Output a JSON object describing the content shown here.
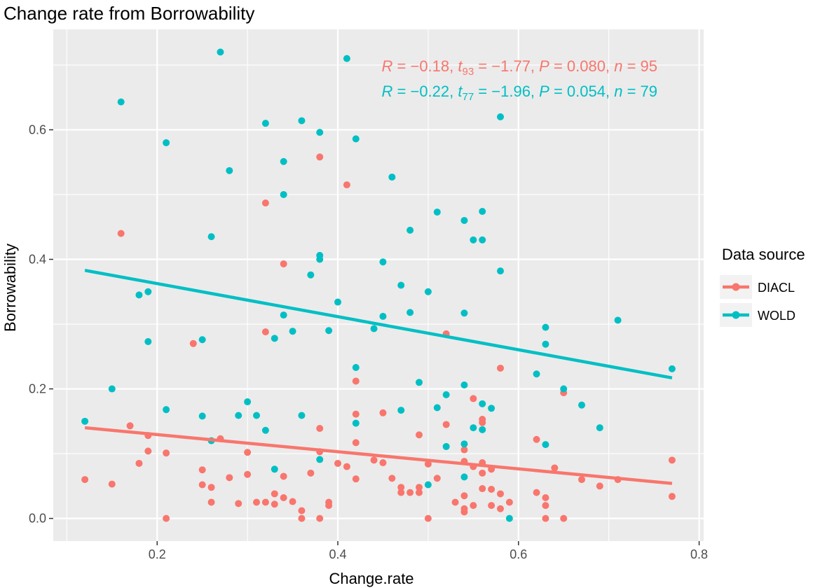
{
  "chart_data": {
    "type": "scatter",
    "title": "Change rate from Borrowability",
    "xlabel": "Change.rate",
    "ylabel": "Borrowability",
    "xlim": [
      0.085,
      0.805
    ],
    "ylim": [
      -0.035,
      0.755
    ],
    "x_ticks": [
      0.2,
      0.4,
      0.6,
      0.8
    ],
    "x_tick_labels": [
      "0.2",
      "0.4",
      "0.6",
      "0.8"
    ],
    "y_ticks": [
      0.0,
      0.2,
      0.4,
      0.6
    ],
    "y_tick_labels": [
      "0.0",
      "0.2",
      "0.4",
      "0.6"
    ],
    "legend": {
      "title": "Data source",
      "position": "right"
    },
    "series": [
      {
        "name": "DIACL",
        "color": "#F8766D",
        "fit": {
          "x0": 0.12,
          "y0": 0.14,
          "x1": 0.77,
          "y1": 0.054
        },
        "stat": {
          "R": "−0.18",
          "df": "93",
          "t": "−1.77",
          "P": "0.080",
          "n": "95"
        },
        "points": [
          [
            0.12,
            0.06
          ],
          [
            0.15,
            0.053
          ],
          [
            0.16,
            0.44
          ],
          [
            0.17,
            0.143
          ],
          [
            0.18,
            0.085
          ],
          [
            0.19,
            0.128
          ],
          [
            0.19,
            0.104
          ],
          [
            0.21,
            0.101
          ],
          [
            0.21,
            0.0
          ],
          [
            0.24,
            0.27
          ],
          [
            0.25,
            0.075
          ],
          [
            0.25,
            0.052
          ],
          [
            0.26,
            0.025
          ],
          [
            0.26,
            0.048
          ],
          [
            0.27,
            0.123
          ],
          [
            0.28,
            0.063
          ],
          [
            0.29,
            0.023
          ],
          [
            0.3,
            0.102
          ],
          [
            0.3,
            0.068
          ],
          [
            0.31,
            0.025
          ],
          [
            0.32,
            0.487
          ],
          [
            0.32,
            0.288
          ],
          [
            0.32,
            0.025
          ],
          [
            0.33,
            0.038
          ],
          [
            0.33,
            0.022
          ],
          [
            0.34,
            0.393
          ],
          [
            0.34,
            0.032
          ],
          [
            0.34,
            0.065
          ],
          [
            0.35,
            0.026
          ],
          [
            0.36,
            0.012
          ],
          [
            0.36,
            0.0
          ],
          [
            0.37,
            0.07
          ],
          [
            0.38,
            0.558
          ],
          [
            0.38,
            0.139
          ],
          [
            0.38,
            0.103
          ],
          [
            0.38,
            0.0
          ],
          [
            0.39,
            0.025
          ],
          [
            0.39,
            0.02
          ],
          [
            0.4,
            0.085
          ],
          [
            0.41,
            0.515
          ],
          [
            0.41,
            0.08
          ],
          [
            0.42,
            0.212
          ],
          [
            0.42,
            0.161
          ],
          [
            0.42,
            0.117
          ],
          [
            0.42,
            0.061
          ],
          [
            0.44,
            0.09
          ],
          [
            0.45,
            0.163
          ],
          [
            0.45,
            0.086
          ],
          [
            0.46,
            0.062
          ],
          [
            0.47,
            0.048
          ],
          [
            0.47,
            0.04
          ],
          [
            0.48,
            0.04
          ],
          [
            0.49,
            0.129
          ],
          [
            0.49,
            0.048
          ],
          [
            0.49,
            0.04
          ],
          [
            0.5,
            0.084
          ],
          [
            0.5,
            0.0
          ],
          [
            0.51,
            0.062
          ],
          [
            0.52,
            0.285
          ],
          [
            0.52,
            0.145
          ],
          [
            0.53,
            0.025
          ],
          [
            0.54,
            0.106
          ],
          [
            0.54,
            0.088
          ],
          [
            0.54,
            0.035
          ],
          [
            0.54,
            0.015
          ],
          [
            0.54,
            0.01
          ],
          [
            0.55,
            0.185
          ],
          [
            0.55,
            0.08
          ],
          [
            0.55,
            0.02
          ],
          [
            0.56,
            0.153
          ],
          [
            0.56,
            0.148
          ],
          [
            0.56,
            0.086
          ],
          [
            0.56,
            0.07
          ],
          [
            0.56,
            0.046
          ],
          [
            0.57,
            0.076
          ],
          [
            0.57,
            0.045
          ],
          [
            0.57,
            0.02
          ],
          [
            0.58,
            0.232
          ],
          [
            0.58,
            0.038
          ],
          [
            0.58,
            0.015
          ],
          [
            0.59,
            0.025
          ],
          [
            0.62,
            0.122
          ],
          [
            0.62,
            0.04
          ],
          [
            0.63,
            0.032
          ],
          [
            0.63,
            0.02
          ],
          [
            0.63,
            0.0
          ],
          [
            0.64,
            0.078
          ],
          [
            0.65,
            0.194
          ],
          [
            0.65,
            0.0
          ],
          [
            0.67,
            0.06
          ],
          [
            0.69,
            0.05
          ],
          [
            0.71,
            0.06
          ],
          [
            0.77,
            0.09
          ],
          [
            0.77,
            0.034
          ]
        ]
      },
      {
        "name": "WOLD",
        "color": "#00BFC4",
        "fit": {
          "x0": 0.12,
          "y0": 0.383,
          "x1": 0.77,
          "y1": 0.217
        },
        "stat": {
          "R": "−0.22",
          "df": "77",
          "t": "−1.96",
          "P": "0.054",
          "n": "79"
        },
        "points": [
          [
            0.12,
            0.15
          ],
          [
            0.15,
            0.2
          ],
          [
            0.16,
            0.643
          ],
          [
            0.18,
            0.345
          ],
          [
            0.19,
            0.35
          ],
          [
            0.19,
            0.273
          ],
          [
            0.21,
            0.58
          ],
          [
            0.21,
            0.168
          ],
          [
            0.25,
            0.276
          ],
          [
            0.25,
            0.158
          ],
          [
            0.26,
            0.435
          ],
          [
            0.26,
            0.12
          ],
          [
            0.27,
            0.72
          ],
          [
            0.28,
            0.537
          ],
          [
            0.29,
            0.159
          ],
          [
            0.3,
            0.18
          ],
          [
            0.31,
            0.159
          ],
          [
            0.32,
            0.61
          ],
          [
            0.32,
            0.136
          ],
          [
            0.33,
            0.278
          ],
          [
            0.33,
            0.076
          ],
          [
            0.34,
            0.551
          ],
          [
            0.34,
            0.5
          ],
          [
            0.34,
            0.314
          ],
          [
            0.35,
            0.289
          ],
          [
            0.36,
            0.614
          ],
          [
            0.36,
            0.159
          ],
          [
            0.37,
            0.376
          ],
          [
            0.38,
            0.596
          ],
          [
            0.38,
            0.406
          ],
          [
            0.38,
            0.4
          ],
          [
            0.38,
            0.091
          ],
          [
            0.39,
            0.29
          ],
          [
            0.4,
            0.334
          ],
          [
            0.41,
            0.71
          ],
          [
            0.42,
            0.586
          ],
          [
            0.42,
            0.233
          ],
          [
            0.42,
            0.147
          ],
          [
            0.44,
            0.293
          ],
          [
            0.45,
            0.396
          ],
          [
            0.45,
            0.312
          ],
          [
            0.46,
            0.527
          ],
          [
            0.47,
            0.36
          ],
          [
            0.47,
            0.167
          ],
          [
            0.48,
            0.445
          ],
          [
            0.48,
            0.318
          ],
          [
            0.49,
            0.21
          ],
          [
            0.5,
            0.35
          ],
          [
            0.5,
            0.052
          ],
          [
            0.51,
            0.473
          ],
          [
            0.51,
            0.171
          ],
          [
            0.52,
            0.191
          ],
          [
            0.52,
            0.111
          ],
          [
            0.54,
            0.46
          ],
          [
            0.54,
            0.317
          ],
          [
            0.54,
            0.206
          ],
          [
            0.54,
            0.115
          ],
          [
            0.54,
            0.064
          ],
          [
            0.55,
            0.43
          ],
          [
            0.55,
            0.14
          ],
          [
            0.56,
            0.474
          ],
          [
            0.56,
            0.43
          ],
          [
            0.56,
            0.177
          ],
          [
            0.56,
            0.137
          ],
          [
            0.57,
            0.17
          ],
          [
            0.58,
            0.62
          ],
          [
            0.58,
            0.382
          ],
          [
            0.59,
            0.0
          ],
          [
            0.62,
            0.223
          ],
          [
            0.63,
            0.295
          ],
          [
            0.63,
            0.269
          ],
          [
            0.63,
            0.114
          ],
          [
            0.65,
            0.2
          ],
          [
            0.67,
            0.175
          ],
          [
            0.69,
            0.14
          ],
          [
            0.71,
            0.306
          ],
          [
            0.77,
            0.231
          ]
        ]
      }
    ]
  }
}
